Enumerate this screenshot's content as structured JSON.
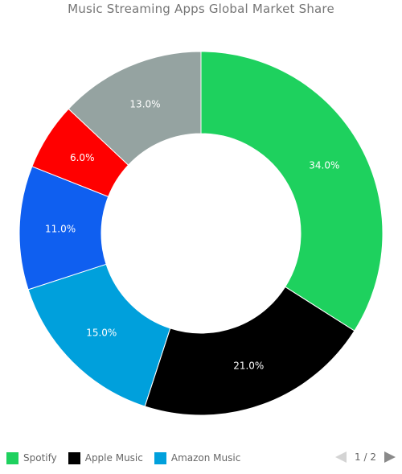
{
  "chart_data": {
    "type": "pie",
    "title": "Music Streaming Apps Global Market Share",
    "donut": true,
    "slices": [
      {
        "name": "Spotify",
        "value": 34.0,
        "label": "34.0%",
        "color": "#1ed15e"
      },
      {
        "name": "Apple Music",
        "value": 21.0,
        "label": "21.0%",
        "color": "#000000"
      },
      {
        "name": "Amazon Music",
        "value": 15.0,
        "label": "15.0%",
        "color": "#00a0dc"
      },
      {
        "name": "",
        "value": 11.0,
        "label": "11.0%",
        "color": "#0f5ff0"
      },
      {
        "name": "",
        "value": 6.0,
        "label": "6.0%",
        "color": "#ff0000"
      },
      {
        "name": "",
        "value": 13.0,
        "label": "13.0%",
        "color": "#95a3a1"
      }
    ],
    "legend_placement": "bottom"
  },
  "legend": {
    "items": [
      {
        "label": "Spotify",
        "color": "#1ed15e"
      },
      {
        "label": "Apple Music",
        "color": "#000000"
      },
      {
        "label": "Amazon Music",
        "color": "#00a0dc"
      }
    ],
    "page_indicator": "1 / 2"
  }
}
